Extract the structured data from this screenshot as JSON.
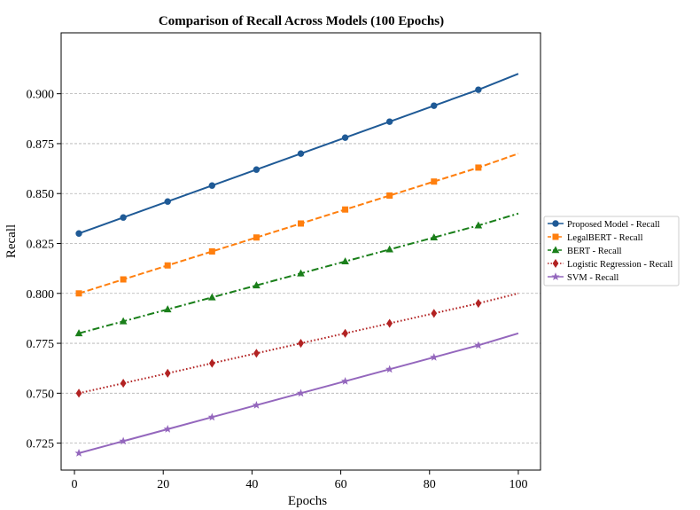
{
  "chart_data": {
    "type": "line",
    "title": "Comparison of Recall Across Models (100 Epochs)",
    "xlabel": "Epochs",
    "ylabel": "Recall",
    "xlim": [
      -3,
      105
    ],
    "ylim": [
      0.7115,
      0.9305
    ],
    "xticks": [
      0,
      20,
      40,
      60,
      80,
      100
    ],
    "yticks": [
      0.725,
      0.75,
      0.775,
      0.8,
      0.825,
      0.85,
      0.875,
      0.9
    ],
    "ytick_labels": [
      "0.725",
      "0.750",
      "0.775",
      "0.800",
      "0.825",
      "0.850",
      "0.875",
      "0.900"
    ],
    "grid": "horizontal dashed",
    "legend_position": "right outside",
    "x": [
      1,
      11,
      21,
      31,
      41,
      51,
      61,
      71,
      81,
      91,
      100
    ],
    "series": [
      {
        "name": "Proposed Model - Recall",
        "color": "#1f5a96",
        "line_style": "solid",
        "marker": "circle",
        "values": [
          0.83,
          0.838,
          0.846,
          0.854,
          0.862,
          0.87,
          0.878,
          0.886,
          0.894,
          0.902,
          0.91
        ]
      },
      {
        "name": "LegalBERT - Recall",
        "color": "#ff7f0e",
        "line_style": "dashed",
        "marker": "square",
        "values": [
          0.8,
          0.807,
          0.814,
          0.821,
          0.828,
          0.835,
          0.842,
          0.849,
          0.856,
          0.863,
          0.87
        ]
      },
      {
        "name": "BERT - Recall",
        "color": "#1a7f1a",
        "line_style": "dashdot",
        "marker": "triangle",
        "values": [
          0.78,
          0.786,
          0.792,
          0.798,
          0.804,
          0.81,
          0.816,
          0.822,
          0.828,
          0.834,
          0.84
        ]
      },
      {
        "name": "Logistic Regression - Recall",
        "color": "#b22222",
        "line_style": "dotted",
        "marker": "diamond",
        "values": [
          0.75,
          0.755,
          0.76,
          0.765,
          0.77,
          0.775,
          0.78,
          0.785,
          0.79,
          0.795,
          0.8
        ]
      },
      {
        "name": "SVM - Recall",
        "color": "#9467bd",
        "line_style": "solid",
        "marker": "star",
        "values": [
          0.72,
          0.726,
          0.732,
          0.738,
          0.744,
          0.75,
          0.756,
          0.762,
          0.768,
          0.774,
          0.78
        ]
      }
    ]
  }
}
